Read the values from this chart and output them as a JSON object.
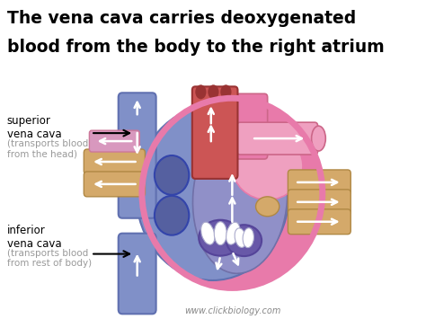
{
  "title_line1": "The vena cava carries deoxygenated",
  "title_line2": "blood from the body to the right atrium",
  "title_fontsize": 13.5,
  "bg_color": "#ffffff",
  "label_color": "#000000",
  "label_sub_color": "#999999",
  "watermark": "www.clickbiology.com",
  "colors": {
    "blue": "#8090C8",
    "blue_dark": "#6070B0",
    "blue_med": "#9099CC",
    "pink": "#E87AAA",
    "pink_light": "#EFA0C0",
    "red": "#CC5555",
    "red_dark": "#993333",
    "purple": "#7060A8",
    "tan": "#D4A96A",
    "white": "#ffffff",
    "outline": "#555555"
  }
}
